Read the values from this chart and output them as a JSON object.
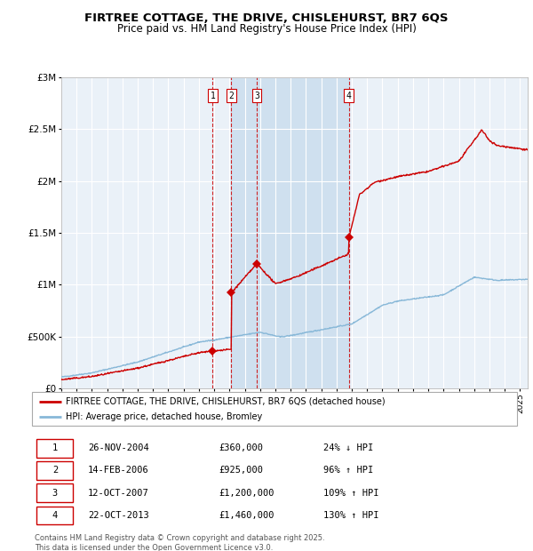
{
  "title": "FIRTREE COTTAGE, THE DRIVE, CHISLEHURST, BR7 6QS",
  "subtitle": "Price paid vs. HM Land Registry's House Price Index (HPI)",
  "title_fontsize": 9.5,
  "subtitle_fontsize": 8.5,
  "bg_color": "#ffffff",
  "plot_bg_color": "#eaf1f8",
  "grid_color": "#ffffff",
  "red_color": "#cc0000",
  "blue_color": "#88b8d8",
  "shaded_region_x1": 2006.12,
  "shaded_region_x2": 2013.8,
  "shaded_color": "#cfe0ef",
  "marker_years": [
    2004.9,
    2006.12,
    2007.78,
    2013.8
  ],
  "marker_prices": [
    360000,
    925000,
    1200000,
    1460000
  ],
  "legend_label_red": "FIRTREE COTTAGE, THE DRIVE, CHISLEHURST, BR7 6QS (detached house)",
  "legend_label_blue": "HPI: Average price, detached house, Bromley",
  "footer": "Contains HM Land Registry data © Crown copyright and database right 2025.\nThis data is licensed under the Open Government Licence v3.0.",
  "xlim": [
    1995,
    2025.5
  ],
  "ylim": [
    0,
    3000000
  ],
  "yticks": [
    0,
    500000,
    1000000,
    1500000,
    2000000,
    2500000,
    3000000
  ],
  "ytick_labels": [
    "£0",
    "£500K",
    "£1M",
    "£1.5M",
    "£2M",
    "£2.5M",
    "£3M"
  ],
  "row_data": [
    [
      "1",
      "26-NOV-2004",
      "£360,000",
      "24% ↓ HPI"
    ],
    [
      "2",
      "14-FEB-2006",
      "£925,000",
      "96% ↑ HPI"
    ],
    [
      "3",
      "12-OCT-2007",
      "£1,200,000",
      "109% ↑ HPI"
    ],
    [
      "4",
      "22-OCT-2013",
      "£1,460,000",
      "130% ↑ HPI"
    ]
  ],
  "num_labels": [
    "1",
    "2",
    "3",
    "4"
  ]
}
